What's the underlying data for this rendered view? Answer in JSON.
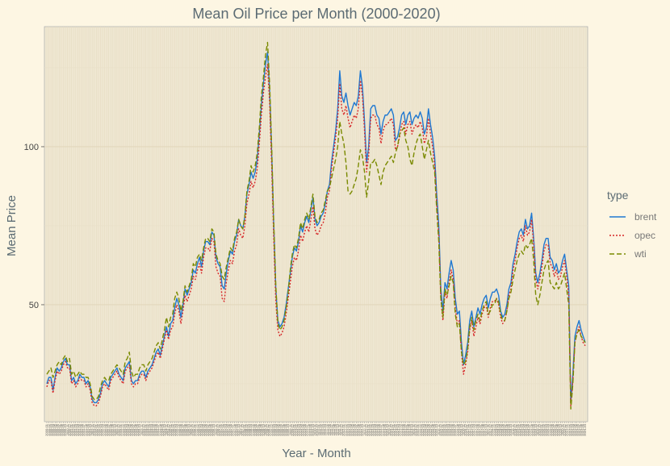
{
  "chart_data": {
    "type": "line",
    "title": "Mean Oil Price per Month (2000-2020)",
    "xlabel": "Year - Month",
    "ylabel": "Mean Price",
    "x_start": "2000-01",
    "x_end": "2020-12",
    "ylim": [
      13,
      138
    ],
    "yticks": [
      50,
      100
    ],
    "grid": true,
    "legend": {
      "title": "type",
      "position": "right"
    },
    "series": [
      {
        "name": "brent",
        "color": "#1f78d1",
        "dash": "",
        "values": [
          25,
          27,
          27,
          23,
          27,
          30,
          29,
          30,
          32,
          33,
          31,
          31,
          26,
          27,
          25,
          26,
          28,
          27,
          27,
          25,
          26,
          24,
          20,
          19,
          19,
          20,
          22,
          25,
          26,
          25,
          24,
          27,
          28,
          29,
          30,
          28,
          27,
          26,
          30,
          31,
          32,
          26,
          25,
          26,
          26,
          28,
          29,
          29,
          27,
          29,
          30,
          31,
          33,
          35,
          36,
          34,
          37,
          40,
          43,
          40,
          44,
          45,
          49,
          52,
          50,
          46,
          50,
          55,
          53,
          55,
          57,
          61,
          60,
          63,
          65,
          62,
          67,
          70,
          70,
          69,
          73,
          72,
          65,
          63,
          62,
          56,
          55,
          60,
          64,
          67,
          66,
          70,
          72,
          77,
          75,
          74,
          78,
          85,
          88,
          92,
          90,
          92,
          96,
          104,
          113,
          120,
          126,
          130,
          118,
          98,
          75,
          55,
          45,
          43,
          44,
          46,
          50,
          55,
          60,
          65,
          68,
          67,
          70,
          75,
          73,
          76,
          78,
          76,
          80,
          84,
          77,
          75,
          76,
          78,
          79,
          82,
          86,
          88,
          95,
          100,
          105,
          112,
          124,
          116,
          114,
          117,
          113,
          110,
          112,
          114,
          113,
          116,
          124,
          119,
          108,
          95,
          100,
          112,
          113,
          113,
          110,
          109,
          104,
          108,
          110,
          110,
          111,
          112,
          110,
          102,
          103,
          106,
          110,
          111,
          107,
          110,
          111,
          107,
          109,
          110,
          109,
          111,
          109,
          104,
          106,
          112,
          107,
          103,
          97,
          85,
          75,
          55,
          48,
          57,
          55,
          60,
          64,
          61,
          52,
          47,
          48,
          38,
          31,
          34,
          38,
          45,
          48,
          43,
          46,
          49,
          47,
          50,
          52,
          53,
          49,
          52,
          54,
          54,
          55,
          53,
          48,
          46,
          47,
          50,
          55,
          57,
          63,
          66,
          70,
          73,
          74,
          72,
          77,
          74,
          75,
          79,
          71,
          60,
          57,
          60,
          64,
          69,
          71,
          71,
          65,
          64,
          61,
          63,
          60,
          61,
          64,
          66,
          61,
          56,
          19,
          28,
          40,
          43,
          45,
          42,
          40,
          38
        ]
      },
      {
        "name": "opec",
        "color": "#d62728",
        "dash": "2,2",
        "values": [
          24,
          26,
          26,
          22,
          26,
          29,
          28,
          29,
          31,
          32,
          30,
          30,
          25,
          26,
          24,
          25,
          27,
          26,
          26,
          24,
          25,
          23,
          19,
          18,
          18,
          19,
          21,
          24,
          25,
          24,
          23,
          26,
          27,
          28,
          29,
          27,
          26,
          25,
          29,
          30,
          31,
          25,
          24,
          25,
          25,
          27,
          28,
          28,
          26,
          28,
          29,
          30,
          32,
          34,
          35,
          33,
          36,
          39,
          42,
          39,
          42,
          43,
          47,
          50,
          48,
          44,
          48,
          53,
          51,
          53,
          55,
          59,
          58,
          61,
          63,
          60,
          65,
          68,
          68,
          67,
          71,
          70,
          62,
          60,
          59,
          52,
          51,
          57,
          61,
          64,
          63,
          67,
          69,
          74,
          72,
          71,
          75,
          82,
          85,
          89,
          87,
          89,
          93,
          101,
          110,
          117,
          122,
          126,
          114,
          94,
          71,
          51,
          42,
          40,
          41,
          43,
          47,
          52,
          57,
          62,
          65,
          64,
          67,
          72,
          70,
          73,
          75,
          73,
          77,
          81,
          74,
          72,
          73,
          75,
          76,
          79,
          84,
          86,
          93,
          98,
          103,
          109,
          120,
          112,
          110,
          113,
          109,
          106,
          108,
          110,
          109,
          112,
          121,
          116,
          105,
          92,
          97,
          109,
          110,
          110,
          107,
          106,
          101,
          105,
          107,
          107,
          108,
          109,
          107,
          99,
          100,
          103,
          107,
          108,
          104,
          107,
          108,
          104,
          106,
          107,
          106,
          108,
          106,
          101,
          103,
          109,
          104,
          100,
          94,
          82,
          72,
          52,
          45,
          54,
          52,
          57,
          61,
          58,
          49,
          44,
          45,
          35,
          28,
          31,
          35,
          42,
          45,
          40,
          43,
          46,
          44,
          47,
          49,
          50,
          46,
          49,
          51,
          51,
          52,
          50,
          46,
          44,
          45,
          48,
          53,
          55,
          61,
          64,
          68,
          71,
          72,
          70,
          75,
          72,
          73,
          77,
          69,
          58,
          55,
          58,
          62,
          67,
          69,
          69,
          63,
          62,
          59,
          61,
          58,
          59,
          62,
          64,
          59,
          53,
          18,
          26,
          38,
          41,
          43,
          40,
          38,
          37
        ]
      },
      {
        "name": "wti",
        "color": "#7a8a00",
        "dash": "6,3",
        "values": [
          28,
          29,
          30,
          27,
          29,
          31,
          32,
          31,
          33,
          34,
          32,
          33,
          28,
          29,
          27,
          28,
          29,
          28,
          28,
          27,
          27,
          25,
          21,
          20,
          20,
          21,
          24,
          26,
          27,
          26,
          26,
          28,
          29,
          30,
          31,
          30,
          29,
          28,
          32,
          33,
          35,
          29,
          27,
          28,
          28,
          30,
          31,
          31,
          29,
          31,
          32,
          33,
          35,
          37,
          38,
          36,
          39,
          42,
          46,
          43,
          46,
          47,
          52,
          54,
          52,
          48,
          51,
          56,
          54,
          56,
          58,
          63,
          62,
          65,
          66,
          64,
          68,
          71,
          71,
          70,
          74,
          73,
          66,
          64,
          63,
          59,
          58,
          62,
          65,
          68,
          67,
          71,
          73,
          77,
          75,
          74,
          78,
          86,
          89,
          94,
          92,
          94,
          98,
          106,
          116,
          122,
          129,
          133,
          120,
          100,
          76,
          56,
          44,
          42,
          43,
          45,
          49,
          54,
          61,
          66,
          69,
          68,
          71,
          76,
          74,
          77,
          79,
          77,
          81,
          85,
          78,
          76,
          77,
          79,
          80,
          83,
          86,
          87,
          90,
          93,
          96,
          100,
          108,
          104,
          101,
          95,
          86,
          85,
          86,
          88,
          90,
          94,
          99,
          97,
          92,
          84,
          89,
          95,
          95,
          96,
          94,
          91,
          88,
          92,
          94,
          95,
          96,
          97,
          95,
          98,
          100,
          104,
          105,
          106,
          102,
          100,
          96,
          94,
          98,
          101,
          103,
          104,
          100,
          96,
          99,
          102,
          98,
          95,
          92,
          80,
          70,
          52,
          46,
          55,
          53,
          56,
          59,
          57,
          47,
          43,
          44,
          35,
          31,
          32,
          36,
          43,
          46,
          42,
          45,
          47,
          45,
          48,
          50,
          51,
          47,
          48,
          50,
          50,
          52,
          51,
          47,
          45,
          45,
          48,
          52,
          54,
          58,
          61,
          64,
          66,
          67,
          66,
          69,
          68,
          69,
          71,
          64,
          53,
          50,
          53,
          57,
          61,
          63,
          64,
          57,
          56,
          55,
          57,
          55,
          56,
          58,
          60,
          55,
          50,
          17,
          25,
          38,
          41,
          42,
          40,
          39,
          38
        ]
      }
    ]
  }
}
